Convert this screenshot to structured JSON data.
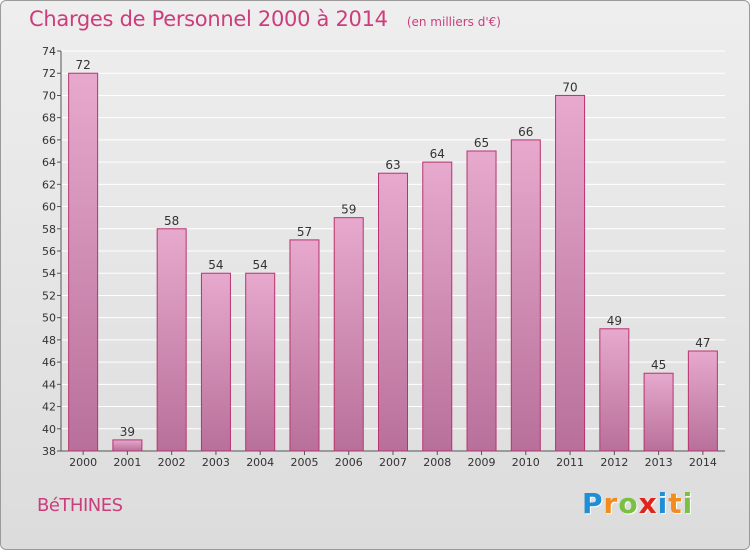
{
  "header": {
    "title": "Charges de Personnel 2000 à 2014",
    "subtitle": "(en milliers d'€)"
  },
  "commune": "BéTHINES",
  "brand": {
    "letters": [
      "P",
      "r",
      "o",
      "x",
      "i",
      "t",
      "i"
    ],
    "colors": [
      "#1e8fd6",
      "#f28c1e",
      "#7ac143",
      "#e2231a",
      "#1e8fd6",
      "#f28c1e",
      "#7ac143"
    ]
  },
  "colors": {
    "bar_fill_top": "#e7a9cd",
    "bar_fill_bottom": "#b8709a",
    "bar_stroke": "#b8336e",
    "accent": "#cc3d7d",
    "grid": "#ffffff"
  },
  "chart_data": {
    "type": "bar",
    "categories": [
      "2000",
      "2001",
      "2002",
      "2003",
      "2004",
      "2005",
      "2006",
      "2007",
      "2008",
      "2009",
      "2010",
      "2011",
      "2012",
      "2013",
      "2014"
    ],
    "values": [
      72,
      39,
      58,
      54,
      54,
      57,
      59,
      63,
      64,
      65,
      66,
      70,
      49,
      45,
      47
    ],
    "title": "Charges de Personnel 2000 à 2014",
    "xlabel": "",
    "ylabel": "",
    "ylim": [
      38,
      74
    ],
    "yticks": [
      38,
      40,
      42,
      44,
      46,
      48,
      50,
      52,
      54,
      56,
      58,
      60,
      62,
      64,
      66,
      68,
      70,
      72,
      74
    ],
    "grid": true
  }
}
